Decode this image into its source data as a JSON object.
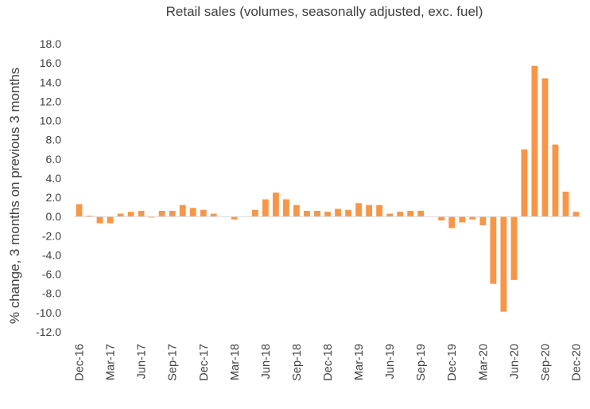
{
  "chart_data": {
    "type": "bar",
    "title": "Retail sales (volumes, seasonally adjusted, exc. fuel)",
    "ylabel": "% change, 3 months on previous 3 months",
    "xlabel": "",
    "ylim": [
      -12.0,
      18.0
    ],
    "yticks": [
      "18.0",
      "16.0",
      "14.0",
      "12.0",
      "10.0",
      "8.0",
      "6.0",
      "4.0",
      "2.0",
      "0.0",
      "-2.0",
      "-4.0",
      "-6.0",
      "-8.0",
      "-10.0",
      "-12.0"
    ],
    "xtick_labels": [
      "Dec-16",
      "Mar-17",
      "Jun-17",
      "Sep-17",
      "Dec-17",
      "Mar-18",
      "Jun-18",
      "Sep-18",
      "Dec-18",
      "Mar-19",
      "Jun-19",
      "Sep-19",
      "Dec-19",
      "Mar-20",
      "Jun-20",
      "Sep-20",
      "Dec-20"
    ],
    "grid": false,
    "bar_color": "#f79646",
    "categories": [
      "Dec-16",
      "Jan-17",
      "Feb-17",
      "Mar-17",
      "Apr-17",
      "May-17",
      "Jun-17",
      "Jul-17",
      "Aug-17",
      "Sep-17",
      "Oct-17",
      "Nov-17",
      "Dec-17",
      "Jan-18",
      "Feb-18",
      "Mar-18",
      "Apr-18",
      "May-18",
      "Jun-18",
      "Jul-18",
      "Aug-18",
      "Sep-18",
      "Oct-18",
      "Nov-18",
      "Dec-18",
      "Jan-19",
      "Feb-19",
      "Mar-19",
      "Apr-19",
      "May-19",
      "Jun-19",
      "Jul-19",
      "Aug-19",
      "Sep-19",
      "Oct-19",
      "Nov-19",
      "Dec-19",
      "Jan-20",
      "Feb-20",
      "Mar-20",
      "Apr-20",
      "May-20",
      "Jun-20",
      "Jul-20",
      "Aug-20",
      "Sep-20",
      "Oct-20",
      "Nov-20",
      "Dec-20"
    ],
    "values": [
      1.3,
      0.1,
      -0.7,
      -0.7,
      0.3,
      0.5,
      0.6,
      -0.1,
      0.6,
      0.6,
      1.2,
      0.9,
      0.7,
      0.3,
      0.0,
      -0.3,
      0.0,
      0.7,
      1.8,
      2.5,
      1.8,
      1.2,
      0.6,
      0.6,
      0.5,
      0.8,
      0.7,
      1.4,
      1.2,
      1.2,
      0.3,
      0.5,
      0.6,
      0.6,
      0.0,
      -0.4,
      -1.2,
      -0.6,
      -0.3,
      -0.9,
      -7.0,
      -9.9,
      -6.6,
      7.0,
      15.7,
      14.4,
      7.5,
      2.6,
      0.5
    ]
  }
}
